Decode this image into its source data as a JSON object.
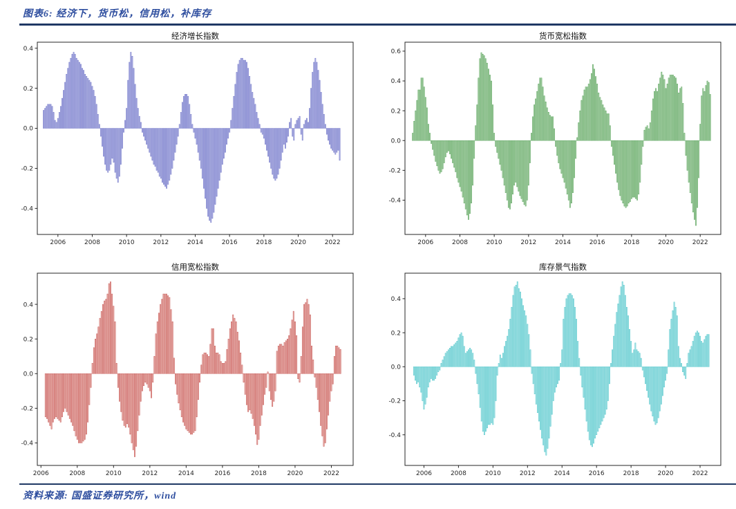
{
  "page": {
    "header": {
      "title": "图表6: 经济下，货币松，信用松，补库存"
    },
    "footer": {
      "source": "资料来源: 国盛证券研究所，wind"
    },
    "colors": {
      "rule": "#1F3864",
      "heading_blue": "#2E4E9F"
    }
  },
  "chart_data": [
    {
      "type": "bar",
      "title": "经济增长指数",
      "xlabel": "",
      "ylabel": "",
      "grid": false,
      "legend": "none",
      "fill": "#b3b5e6",
      "edge": "#6a6fc4",
      "start_year": 2005,
      "start_month": 3,
      "xlim": [
        2004.8,
        2023.2
      ],
      "ylim": [
        -0.53,
        0.43
      ],
      "xticks": [
        2006,
        2008,
        2010,
        2012,
        2014,
        2016,
        2018,
        2020,
        2022
      ],
      "yticks": [
        0.4,
        0.2,
        0.0,
        -0.2,
        -0.4
      ],
      "values": [
        0.09,
        0.1,
        0.11,
        0.12,
        0.12,
        0.12,
        0.11,
        0.08,
        0.04,
        0.03,
        0.05,
        0.08,
        0.11,
        0.15,
        0.19,
        0.23,
        0.27,
        0.3,
        0.33,
        0.35,
        0.37,
        0.38,
        0.37,
        0.35,
        0.34,
        0.33,
        0.32,
        0.3,
        0.29,
        0.27,
        0.26,
        0.25,
        0.24,
        0.23,
        0.21,
        0.19,
        0.16,
        0.12,
        0.07,
        0.02,
        -0.04,
        -0.09,
        -0.14,
        -0.18,
        -0.21,
        -0.22,
        -0.21,
        -0.18,
        -0.15,
        -0.17,
        -0.22,
        -0.25,
        -0.27,
        -0.24,
        -0.18,
        -0.1,
        -0.02,
        0.04,
        0.1,
        0.24,
        0.33,
        0.38,
        0.36,
        0.3,
        0.22,
        0.15,
        0.1,
        0.06,
        0.03,
        -0.02,
        -0.04,
        -0.06,
        -0.08,
        -0.1,
        -0.12,
        -0.14,
        -0.16,
        -0.18,
        -0.19,
        -0.21,
        -0.22,
        -0.24,
        -0.25,
        -0.27,
        -0.28,
        -0.29,
        -0.3,
        -0.28,
        -0.26,
        -0.23,
        -0.2,
        -0.16,
        -0.12,
        -0.08,
        -0.04,
        0.02,
        0.08,
        0.13,
        0.16,
        0.17,
        0.17,
        0.16,
        0.12,
        0.07,
        0.02,
        -0.02,
        -0.05,
        -0.08,
        -0.12,
        -0.16,
        -0.2,
        -0.25,
        -0.3,
        -0.35,
        -0.4,
        -0.44,
        -0.46,
        -0.47,
        -0.45,
        -0.42,
        -0.38,
        -0.34,
        -0.3,
        -0.26,
        -0.22,
        -0.18,
        -0.15,
        -0.12,
        -0.08,
        -0.05,
        -0.02,
        0.04,
        0.1,
        0.16,
        0.22,
        0.28,
        0.32,
        0.34,
        0.35,
        0.35,
        0.34,
        0.34,
        0.33,
        0.3,
        0.26,
        0.22,
        0.18,
        0.15,
        0.12,
        0.08,
        0.05,
        0.02,
        -0.02,
        -0.03,
        -0.05,
        -0.08,
        -0.11,
        -0.14,
        -0.17,
        -0.2,
        -0.23,
        -0.25,
        -0.26,
        -0.25,
        -0.23,
        -0.2,
        -0.16,
        -0.12,
        -0.08,
        -0.1,
        -0.07,
        -0.04,
        0.03,
        0.05,
        -0.04,
        -0.06,
        0.02,
        0.04,
        0.05,
        0.06,
        -0.03,
        -0.06,
        0.02,
        0.04,
        0.05,
        0.03,
        0.1,
        0.2,
        0.28,
        0.33,
        0.35,
        0.33,
        0.29,
        0.24,
        0.18,
        0.12,
        0.07,
        0.02,
        -0.03,
        -0.06,
        -0.08,
        -0.1,
        -0.11,
        -0.12,
        -0.13,
        -0.12,
        -0.11,
        -0.16
      ]
    },
    {
      "type": "bar",
      "title": "货币宽松指数",
      "xlabel": "",
      "ylabel": "",
      "grid": false,
      "legend": "none",
      "fill": "#b5d6b2",
      "edge": "#4f9e52",
      "start_year": 2005,
      "start_month": 4,
      "xlim": [
        2004.8,
        2023.2
      ],
      "ylim": [
        -0.63,
        0.66
      ],
      "xticks": [
        2006,
        2008,
        2010,
        2012,
        2014,
        2016,
        2018,
        2020,
        2022
      ],
      "yticks": [
        0.6,
        0.4,
        0.2,
        0.0,
        -0.2,
        -0.4
      ],
      "values": [
        0.05,
        0.13,
        0.2,
        0.27,
        0.34,
        0.34,
        0.42,
        0.42,
        0.36,
        0.29,
        0.22,
        0.11,
        0.05,
        -0.02,
        -0.06,
        -0.1,
        -0.14,
        -0.17,
        -0.2,
        -0.22,
        -0.21,
        -0.19,
        -0.15,
        -0.11,
        -0.08,
        -0.07,
        -0.09,
        -0.12,
        -0.15,
        -0.18,
        -0.21,
        -0.25,
        -0.28,
        -0.31,
        -0.34,
        -0.38,
        -0.42,
        -0.46,
        -0.5,
        -0.53,
        -0.49,
        -0.42,
        -0.3,
        -0.12,
        0.1,
        0.24,
        0.42,
        0.55,
        0.59,
        0.58,
        0.57,
        0.55,
        0.52,
        0.48,
        0.44,
        0.4,
        0.24,
        0.05,
        -0.04,
        -0.08,
        -0.12,
        -0.16,
        -0.2,
        -0.25,
        -0.3,
        -0.35,
        -0.4,
        -0.45,
        -0.46,
        -0.42,
        -0.36,
        -0.3,
        -0.28,
        -0.31,
        -0.34,
        -0.37,
        -0.39,
        -0.41,
        -0.43,
        -0.44,
        -0.4,
        -0.3,
        -0.15,
        0.05,
        0.16,
        0.24,
        0.28,
        0.33,
        0.38,
        0.42,
        0.42,
        0.36,
        0.3,
        0.26,
        0.22,
        0.19,
        0.17,
        0.16,
        0.16,
        0.08,
        -0.04,
        -0.1,
        -0.15,
        -0.19,
        -0.22,
        -0.25,
        -0.28,
        -0.32,
        -0.36,
        -0.4,
        -0.45,
        -0.42,
        -0.35,
        -0.25,
        -0.12,
        0.02,
        0.12,
        0.2,
        0.27,
        0.3,
        0.34,
        0.36,
        0.36,
        0.38,
        0.41,
        0.45,
        0.51,
        0.48,
        0.43,
        0.38,
        0.32,
        0.29,
        0.27,
        0.24,
        0.22,
        0.2,
        0.18,
        0.18,
        0.1,
        -0.04,
        -0.1,
        -0.16,
        -0.22,
        -0.28,
        -0.33,
        -0.37,
        -0.4,
        -0.42,
        -0.44,
        -0.45,
        -0.44,
        -0.42,
        -0.41,
        -0.39,
        -0.38,
        -0.38,
        -0.39,
        -0.4,
        -0.36,
        -0.28,
        -0.16,
        -0.04,
        0.07,
        0.09,
        0.1,
        0.08,
        0.12,
        0.2,
        0.28,
        0.33,
        0.35,
        0.33,
        0.38,
        0.42,
        0.46,
        0.44,
        0.41,
        0.35,
        0.38,
        0.42,
        0.44,
        0.44,
        0.44,
        0.43,
        0.42,
        0.38,
        0.32,
        0.35,
        0.36,
        0.25,
        0.05,
        -0.1,
        -0.2,
        -0.28,
        -0.35,
        -0.42,
        -0.48,
        -0.53,
        -0.57,
        -0.45,
        -0.25,
        0.11,
        0.3,
        0.35,
        0.33,
        0.37,
        0.4,
        0.39,
        0.31
      ]
    },
    {
      "type": "bar",
      "title": "信用宽松指数",
      "xlabel": "",
      "ylabel": "",
      "grid": false,
      "legend": "none",
      "fill": "#eab4b0",
      "edge": "#c4504c",
      "start_year": 2006,
      "start_month": 4,
      "xlim": [
        2005.8,
        2023.2
      ],
      "ylim": [
        -0.53,
        0.58
      ],
      "xticks": [
        2006,
        2008,
        2010,
        2012,
        2014,
        2016,
        2018,
        2020,
        2022
      ],
      "yticks": [
        0.4,
        0.2,
        0.0,
        -0.2,
        -0.4
      ],
      "values": [
        -0.25,
        -0.26,
        -0.28,
        -0.3,
        -0.32,
        -0.28,
        -0.26,
        -0.25,
        -0.26,
        -0.27,
        -0.28,
        -0.25,
        -0.22,
        -0.2,
        -0.22,
        -0.24,
        -0.26,
        -0.28,
        -0.3,
        -0.33,
        -0.36,
        -0.38,
        -0.4,
        -0.4,
        -0.4,
        -0.39,
        -0.38,
        -0.35,
        -0.28,
        -0.18,
        -0.08,
        0.06,
        0.15,
        0.2,
        0.23,
        0.27,
        0.32,
        0.36,
        0.4,
        0.42,
        0.43,
        0.46,
        0.52,
        0.53,
        0.46,
        0.39,
        0.3,
        0.06,
        -0.08,
        -0.16,
        -0.22,
        -0.27,
        -0.3,
        -0.31,
        -0.29,
        -0.31,
        -0.35,
        -0.4,
        -0.44,
        -0.48,
        -0.42,
        -0.33,
        -0.24,
        -0.16,
        -0.1,
        -0.07,
        -0.05,
        -0.06,
        -0.08,
        -0.1,
        -0.14,
        -0.05,
        0.1,
        0.23,
        0.3,
        0.35,
        0.4,
        0.43,
        0.46,
        0.46,
        0.46,
        0.45,
        0.44,
        0.37,
        0.3,
        0.09,
        -0.06,
        -0.12,
        -0.17,
        -0.21,
        -0.25,
        -0.28,
        -0.3,
        -0.32,
        -0.33,
        -0.34,
        -0.35,
        -0.35,
        -0.34,
        -0.33,
        -0.25,
        -0.15,
        -0.05,
        0.05,
        0.11,
        0.12,
        0.12,
        0.11,
        0.1,
        0.17,
        0.26,
        0.26,
        0.16,
        0.12,
        0.12,
        0.11,
        0.07,
        0.06,
        0.06,
        0.07,
        0.14,
        0.2,
        0.26,
        0.3,
        0.34,
        0.32,
        0.3,
        0.24,
        0.19,
        0.12,
        0.05,
        -0.05,
        -0.12,
        -0.18,
        -0.22,
        -0.21,
        -0.23,
        -0.26,
        -0.3,
        -0.35,
        -0.41,
        -0.38,
        -0.3,
        -0.24,
        -0.18,
        -0.12,
        -0.08,
        0.01,
        -0.1,
        -0.15,
        -0.19,
        -0.16,
        -0.1,
        0.13,
        0.16,
        0.17,
        0.17,
        0.16,
        0.18,
        0.19,
        0.2,
        0.22,
        0.26,
        0.31,
        0.36,
        0.3,
        0.22,
        -0.03,
        -0.05,
        0.1,
        0.27,
        0.4,
        0.41,
        0.43,
        0.4,
        0.34,
        0.16,
        0.08,
        -0.02,
        -0.08,
        -0.15,
        -0.22,
        -0.3,
        -0.36,
        -0.42,
        -0.4,
        -0.32,
        -0.24,
        -0.16,
        -0.1,
        -0.06,
        0.1,
        0.16,
        0.16,
        0.15,
        0.14
      ]
    },
    {
      "type": "bar",
      "title": "库存景气指数",
      "xlabel": "",
      "ylabel": "",
      "grid": false,
      "legend": "none",
      "fill": "#b5e6e8",
      "edge": "#45c3c8",
      "start_year": 2005,
      "start_month": 6,
      "xlim": [
        2004.9,
        2023.2
      ],
      "ylim": [
        -0.58,
        0.55
      ],
      "xticks": [
        2006,
        2008,
        2010,
        2012,
        2014,
        2016,
        2018,
        2020,
        2022
      ],
      "yticks": [
        0.4,
        0.2,
        0.0,
        -0.2,
        -0.4
      ],
      "values": [
        -0.05,
        -0.08,
        -0.1,
        -0.09,
        -0.12,
        -0.15,
        -0.2,
        -0.25,
        -0.22,
        -0.18,
        -0.12,
        -0.09,
        -0.07,
        -0.08,
        -0.08,
        -0.07,
        -0.05,
        -0.03,
        -0.02,
        0.02,
        0.04,
        0.06,
        0.08,
        0.09,
        0.1,
        0.11,
        0.12,
        0.12,
        0.13,
        0.14,
        0.15,
        0.17,
        0.19,
        0.2,
        0.18,
        0.12,
        0.08,
        0.09,
        0.1,
        0.11,
        0.1,
        0.08,
        0.04,
        -0.04,
        -0.1,
        -0.16,
        -0.24,
        -0.32,
        -0.38,
        -0.4,
        -0.38,
        -0.36,
        -0.34,
        -0.34,
        -0.33,
        -0.34,
        -0.3,
        -0.2,
        -0.05,
        0.02,
        0.07,
        0.05,
        0.08,
        0.12,
        0.15,
        0.18,
        0.22,
        0.28,
        0.35,
        0.42,
        0.47,
        0.48,
        0.5,
        0.46,
        0.44,
        0.4,
        0.36,
        0.33,
        0.3,
        0.25,
        0.19,
        0.1,
        -0.04,
        -0.1,
        -0.16,
        -0.22,
        -0.27,
        -0.32,
        -0.37,
        -0.42,
        -0.46,
        -0.5,
        -0.52,
        -0.48,
        -0.42,
        -0.35,
        -0.28,
        -0.2,
        -0.15,
        -0.12,
        -0.1,
        -0.08,
        0.02,
        0.1,
        0.28,
        0.35,
        0.4,
        0.42,
        0.43,
        0.43,
        0.42,
        0.4,
        0.35,
        0.28,
        0.15,
        0.05,
        -0.05,
        -0.12,
        -0.18,
        -0.25,
        -0.32,
        -0.38,
        -0.43,
        -0.46,
        -0.47,
        -0.45,
        -0.42,
        -0.4,
        -0.38,
        -0.36,
        -0.34,
        -0.32,
        -0.3,
        -0.28,
        -0.25,
        -0.2,
        -0.1,
        0.02,
        0.1,
        0.18,
        0.25,
        0.32,
        0.37,
        0.42,
        0.47,
        0.5,
        0.48,
        0.42,
        0.35,
        0.3,
        0.22,
        0.15,
        0.08,
        0.1,
        0.14,
        0.1,
        0.09,
        0.08,
        0.05,
        -0.02,
        -0.06,
        -0.1,
        -0.14,
        -0.18,
        -0.22,
        -0.26,
        -0.29,
        -0.32,
        -0.34,
        -0.33,
        -0.3,
        -0.26,
        -0.22,
        -0.17,
        -0.12,
        -0.08,
        -0.04,
        0.1,
        0.22,
        0.28,
        0.33,
        0.38,
        0.35,
        0.3,
        0.12,
        0.05,
        0.02,
        -0.03,
        -0.05,
        -0.07,
        0.02,
        0.08,
        0.1,
        0.12,
        0.15,
        0.18,
        0.2,
        0.21,
        0.2,
        0.18,
        0.15,
        0.14,
        0.16,
        0.18,
        0.19,
        0.19
      ]
    }
  ]
}
